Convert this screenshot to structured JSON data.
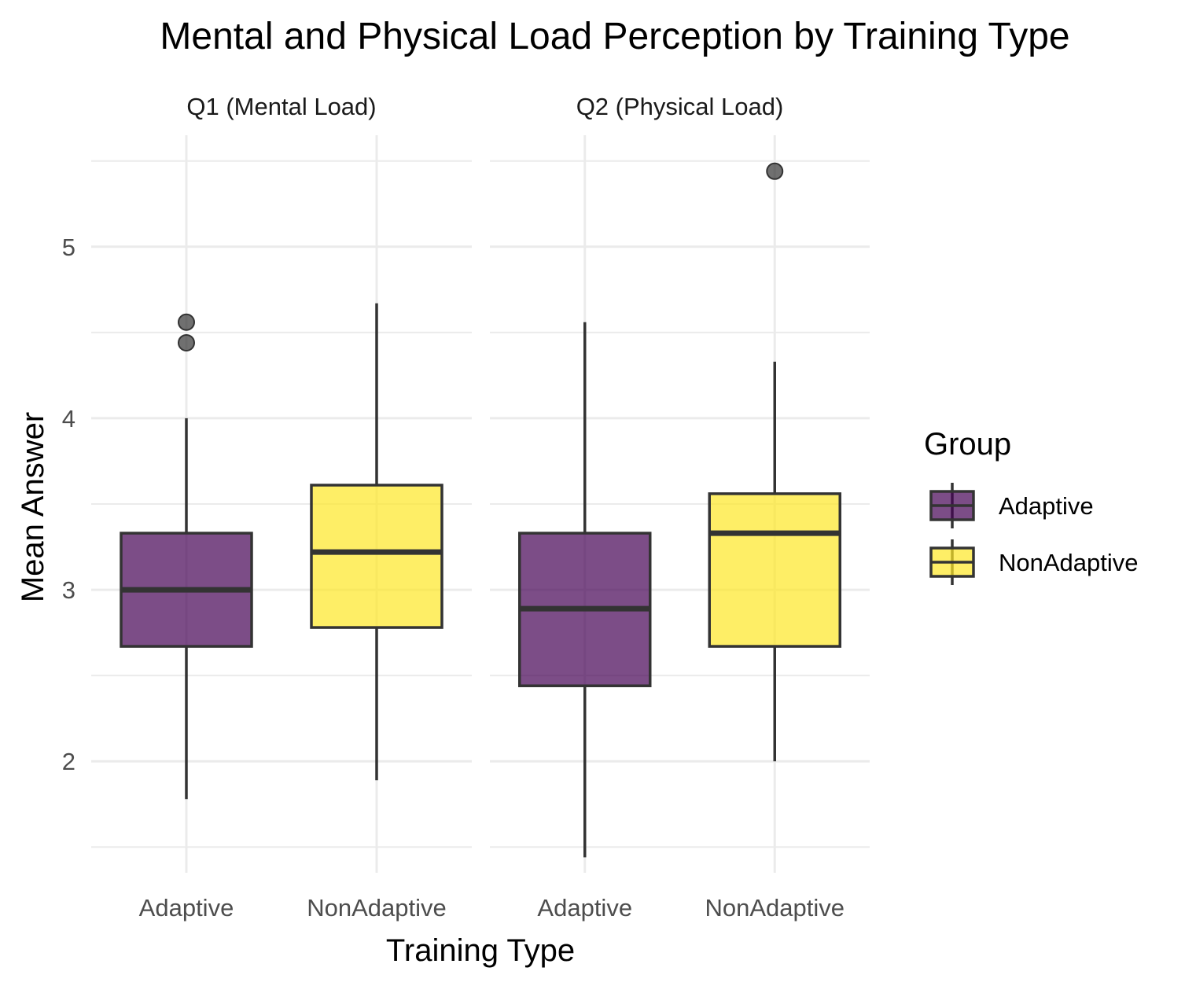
{
  "chart_data": {
    "type": "boxplot",
    "title": "Mental and Physical Load Perception by Training Type",
    "xlabel": "Training Type",
    "ylabel": "Mean Answer",
    "ylim": [
      1.35,
      5.65
    ],
    "yticks": [
      2,
      3,
      4,
      5
    ],
    "grid": true,
    "legend": {
      "title": "Group",
      "position": "right",
      "entries": [
        {
          "label": "Adaptive",
          "color": "#440154"
        },
        {
          "label": "NonAdaptive",
          "color": "#FDE725"
        }
      ]
    },
    "fill_alpha": 0.7,
    "panels": [
      {
        "strip": "Q1 (Mental Load)",
        "categories": [
          "Adaptive",
          "NonAdaptive"
        ],
        "boxes": [
          {
            "group": "Adaptive",
            "whisker_low": 1.78,
            "q1": 2.67,
            "median": 3.0,
            "q3": 3.33,
            "whisker_high": 4.0,
            "outliers": [
              4.44,
              4.56
            ]
          },
          {
            "group": "NonAdaptive",
            "whisker_low": 1.89,
            "q1": 2.78,
            "median": 3.22,
            "q3": 3.61,
            "whisker_high": 4.67,
            "outliers": []
          }
        ]
      },
      {
        "strip": "Q2 (Physical Load)",
        "categories": [
          "Adaptive",
          "NonAdaptive"
        ],
        "boxes": [
          {
            "group": "Adaptive",
            "whisker_low": 1.44,
            "q1": 2.44,
            "median": 2.89,
            "q3": 3.33,
            "whisker_high": 4.56,
            "outliers": []
          },
          {
            "group": "NonAdaptive",
            "whisker_low": 2.0,
            "q1": 2.67,
            "median": 3.33,
            "q3": 3.56,
            "whisker_high": 4.33,
            "outliers": [
              5.44
            ]
          }
        ]
      }
    ]
  }
}
